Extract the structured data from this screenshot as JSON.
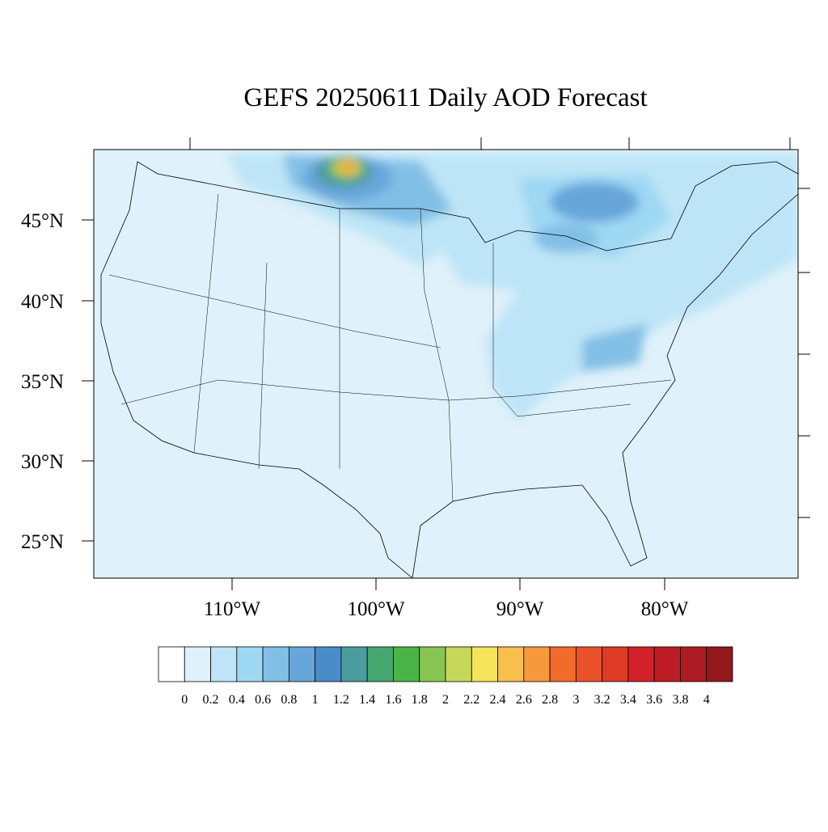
{
  "title": "GEFS 20250611 Daily AOD Forecast",
  "lat_labels": [
    "45°N",
    "40°N",
    "35°N",
    "30°N",
    "25°N"
  ],
  "lon_labels": [
    "110°W",
    "100°W",
    "90°W",
    "80°W"
  ],
  "colorbar": {
    "levels": [
      0,
      0.2,
      0.4,
      0.6,
      0.8,
      1,
      1.2,
      1.4,
      1.6,
      1.8,
      2,
      2.2,
      2.4,
      2.6,
      2.8,
      3,
      3.2,
      3.4,
      3.6,
      3.8,
      4
    ],
    "colors": [
      "#ffffff",
      "#dff1fa",
      "#bde5f7",
      "#9fd8f3",
      "#82bfe6",
      "#68a6da",
      "#4a8cc8",
      "#4a9c9e",
      "#46a86f",
      "#4bb447",
      "#87c552",
      "#c5d85a",
      "#f6e45b",
      "#f8bf4c",
      "#f6983c",
      "#f36b2c",
      "#e9522b",
      "#de3a26",
      "#d42028",
      "#bf1d25",
      "#ab1b21",
      "#921a1c"
    ]
  }
}
